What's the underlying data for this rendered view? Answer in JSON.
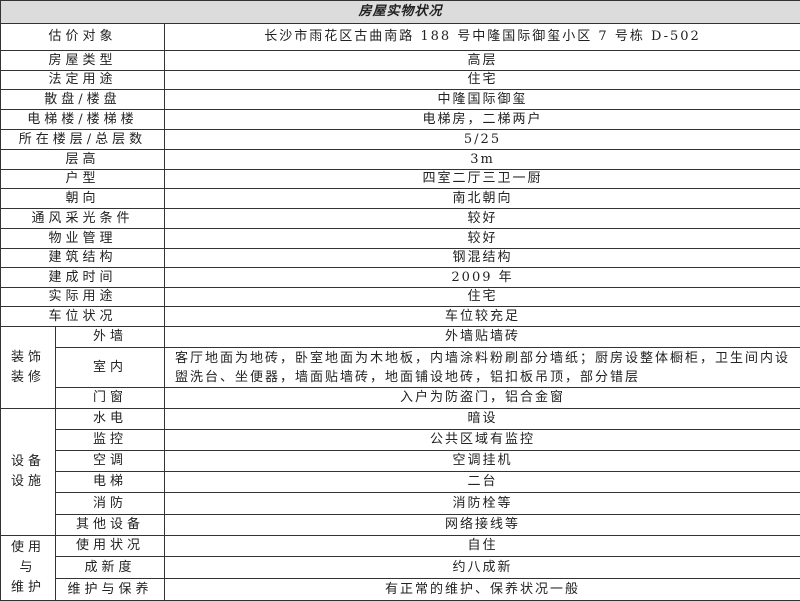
{
  "title": "房屋实物状况",
  "rows": [
    {
      "label": "估价对象",
      "value": "长沙市雨花区古曲南路 188 号中隆国际御玺小区 7 号栋 D-502"
    },
    {
      "label": "房屋类型",
      "value": "高层"
    },
    {
      "label": "法定用途",
      "value": "住宅"
    },
    {
      "label": "散盘/楼盘",
      "value": "中隆国际御玺"
    },
    {
      "label": "电梯楼/楼梯楼",
      "value": "电梯房，二梯两户"
    },
    {
      "label": "所在楼层/总层数",
      "value": "5/25"
    },
    {
      "label": "层高",
      "value": "3m"
    },
    {
      "label": "户型",
      "value": "四室二厅三卫一厨"
    },
    {
      "label": "朝向",
      "value": "南北朝向"
    },
    {
      "label": "通风采光条件",
      "value": "较好"
    },
    {
      "label": "物业管理",
      "value": "较好"
    },
    {
      "label": "建筑结构",
      "value": "钢混结构"
    },
    {
      "label": "建成时间",
      "value": "2009 年"
    },
    {
      "label": "实际用途",
      "value": "住宅"
    },
    {
      "label": "车位状况",
      "value": "车位较充足"
    }
  ],
  "decoration": {
    "group": "装饰装修",
    "items": [
      {
        "label": "外墙",
        "value": "外墙贴墙砖"
      },
      {
        "label": "室内",
        "value": "客厅地面为地砖，卧室地面为木地板，内墙涂料粉刷部分墙纸；厨房设整体橱柜，卫生间内设盥洗台、坐便器，墙面贴墙砖，地面铺设地砖，铝扣板吊顶，部分错层"
      },
      {
        "label": "门窗",
        "value": "入户为防盗门，铝合金窗"
      }
    ]
  },
  "equipment": {
    "group": "设备设施",
    "items": [
      {
        "label": "水电",
        "value": "暗设"
      },
      {
        "label": "监控",
        "value": "公共区域有监控"
      },
      {
        "label": "空调",
        "value": "空调挂机"
      },
      {
        "label": "电梯",
        "value": "二台"
      },
      {
        "label": "消防",
        "value": "消防栓等"
      },
      {
        "label": "其他设备",
        "value": "网络接线等"
      }
    ]
  },
  "usage": {
    "group": "使用与维护",
    "items": [
      {
        "label": "使用状况",
        "value": "自住"
      },
      {
        "label": "成新度",
        "value": "约八成新"
      },
      {
        "label": "维护与保养",
        "value": "有正常的维护、保养状况一般"
      }
    ]
  }
}
